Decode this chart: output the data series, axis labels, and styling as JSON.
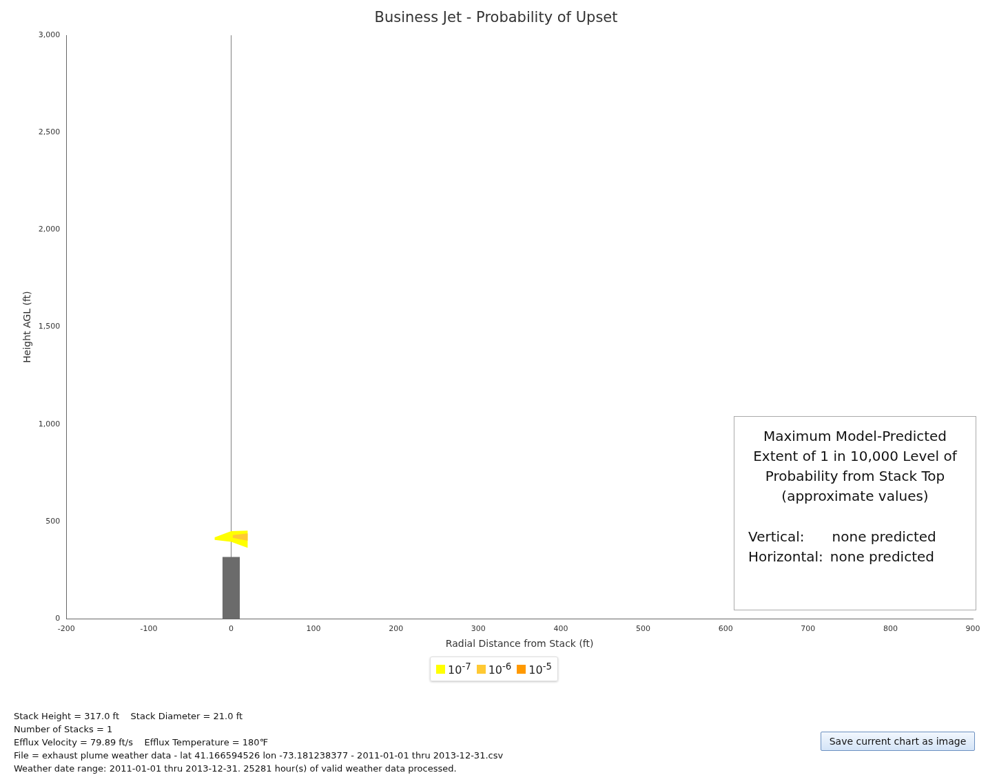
{
  "chart_data": {
    "type": "area",
    "title": "Business Jet - Probability of Upset",
    "xlabel": "Radial Distance from Stack (ft)",
    "ylabel": "Height AGL (ft)",
    "xlim": [
      -200,
      900
    ],
    "xticks": [
      -200,
      -100,
      0,
      100,
      200,
      300,
      400,
      500,
      600,
      700,
      800,
      900
    ],
    "ylim": [
      0,
      3000
    ],
    "yticks": [
      0,
      500,
      {
        "value": 1000,
        "label": "1,000"
      },
      {
        "value": 1500,
        "label": "1,500"
      },
      {
        "value": 2000,
        "label": "2,000"
      },
      {
        "value": 2500,
        "label": "2,500"
      },
      {
        "value": 3000,
        "label": "3,000"
      }
    ],
    "series": [
      {
        "color": "#6b6b6b",
        "x": [
          -10.5,
          -10.5,
          10.5,
          10.5
        ],
        "values": [
          0,
          317,
          317,
          0
        ]
      },
      {
        "name": "10$^{-7}$",
        "color": "#ffff00",
        "x": [
          -20,
          0,
          20,
          20,
          0,
          -20
        ],
        "values": [
          418,
          450,
          453,
          364,
          395,
          405
        ]
      },
      {
        "name": "10$^{-6}$",
        "color": "#ffc933",
        "x": [
          2,
          20,
          20,
          2
        ],
        "values": [
          430,
          438,
          400,
          415
        ]
      },
      {
        "name": "10$^{-5}$",
        "color": "#ff9900"
      }
    ],
    "ref_lines": [
      {
        "axis": "x",
        "value": 0,
        "color": "#808080"
      }
    ],
    "grid": false,
    "legend": "bottom",
    "annotations": [
      "Maximum Model-Predicted Extent of 1 in 10,000 Level of Probability from Stack Top (approximate values)",
      "Vertical:  none predicted",
      "Horizontal: none predicted",
      "Stack Height = 317.0 ft    Stack Diameter = 21.0 ft",
      "Number of Stacks = 1",
      "Efflux Velocity = 79.89 ft/s    Efflux Temperature = 180℉",
      "File = exhaust plume weather data - lat 41.166594526 lon -73.181238377 - 2011-01-01 thru 2013-12-31.csv",
      "Weather date range: 2011-01-01 thru 2013-12-31. 25281 hour(s) of valid weather data processed.",
      "Save current chart as image"
    ]
  }
}
